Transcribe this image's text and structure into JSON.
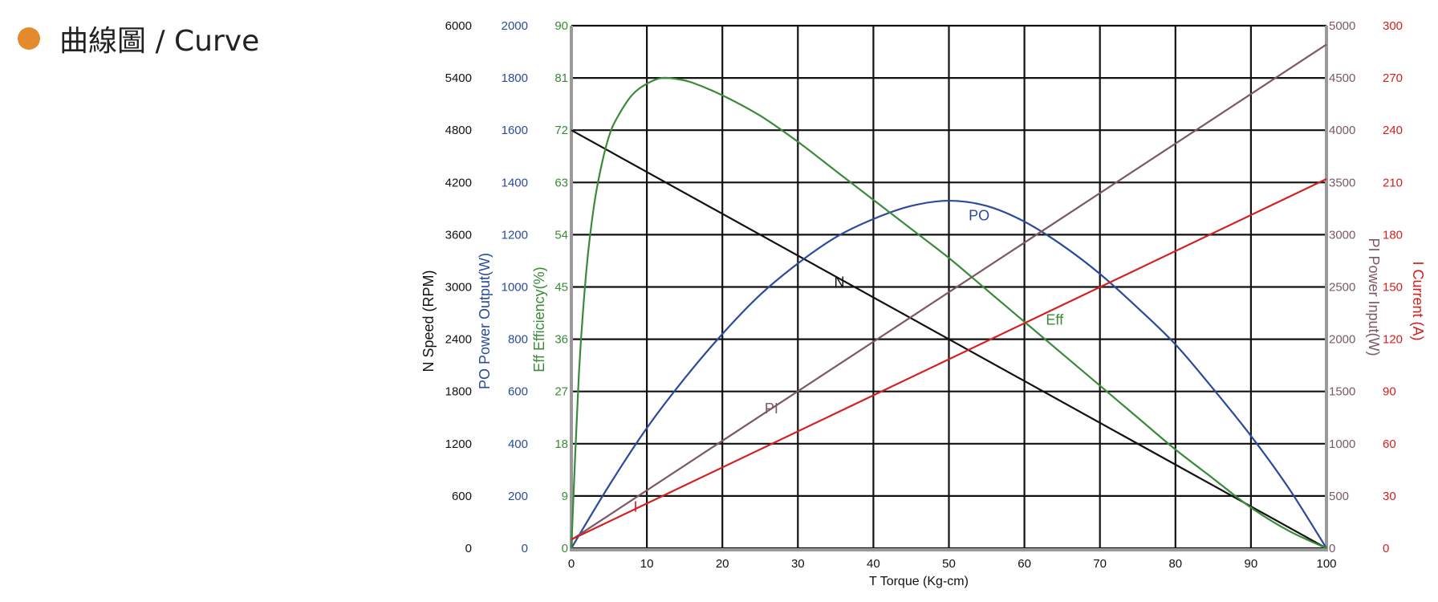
{
  "header": {
    "title": "曲線圖 / Curve"
  },
  "colors": {
    "bullet": "#e38a2d",
    "speed": "#111111",
    "power_output": "#2a4b9b",
    "efficiency": "#3a8a3a",
    "power_input": "#7a5866",
    "current": "#d22020",
    "grid": "#111111"
  },
  "chart_data": {
    "type": "line",
    "grid": true,
    "x_axis": {
      "label": "T    Torque (Kg-cm)",
      "range": [
        0,
        100
      ],
      "ticks": [
        "0",
        "10",
        "20",
        "30",
        "40",
        "50",
        "60",
        "70",
        "80",
        "90",
        "100"
      ]
    },
    "y_axes": [
      {
        "id": "speed",
        "label": "N Speed (RPM)",
        "color": "#111111",
        "side": "left",
        "range": [
          0,
          6000
        ],
        "ticks": [
          "0",
          "600",
          "1200",
          "1800",
          "2400",
          "3000",
          "3600",
          "4200",
          "4800",
          "5400",
          "6000"
        ]
      },
      {
        "id": "po",
        "label": "PO Power Output(W)",
        "color": "#2a4b9b",
        "side": "left",
        "range": [
          0,
          2000
        ],
        "ticks": [
          "0",
          "200",
          "400",
          "600",
          "800",
          "1000",
          "1200",
          "1400",
          "1600",
          "1800",
          "2000"
        ]
      },
      {
        "id": "eff",
        "label": "Eff Efficiency(%)",
        "color": "#3a8a3a",
        "side": "left",
        "range": [
          0,
          90
        ],
        "ticks": [
          "0",
          "9",
          "18",
          "27",
          "36",
          "45",
          "54",
          "63",
          "72",
          "81",
          "90"
        ]
      },
      {
        "id": "pi",
        "label": "PI   Power Input(W)",
        "color": "#7a5866",
        "side": "right",
        "range": [
          0,
          5000
        ],
        "ticks": [
          "0",
          "500",
          "1000",
          "1500",
          "2000",
          "2500",
          "3000",
          "3500",
          "4000",
          "4500",
          "5000"
        ]
      },
      {
        "id": "cur",
        "label": "I   Current (A)",
        "color": "#d22020",
        "side": "right",
        "range": [
          0,
          300
        ],
        "ticks": [
          "0",
          "30",
          "60",
          "90",
          "120",
          "150",
          "180",
          "210",
          "240",
          "270",
          "300"
        ]
      }
    ],
    "series": [
      {
        "name": "N",
        "axis": "speed",
        "x": [
          0,
          100
        ],
        "y": [
          4800,
          0
        ]
      },
      {
        "name": "PO",
        "axis": "po",
        "x": [
          0,
          5,
          10,
          15,
          20,
          25,
          30,
          35,
          40,
          45,
          50,
          55,
          60,
          65,
          70,
          75,
          80,
          85,
          90,
          95,
          100
        ],
        "y": [
          0,
          240,
          460,
          650,
          820,
          970,
          1090,
          1190,
          1260,
          1310,
          1330,
          1310,
          1250,
          1160,
          1050,
          920,
          780,
          610,
          430,
          230,
          0
        ]
      },
      {
        "name": "Eff",
        "axis": "eff",
        "x": [
          0,
          1,
          2,
          3,
          4,
          5,
          6,
          8,
          10,
          12,
          14,
          16,
          20,
          25,
          30,
          35,
          40,
          45,
          50,
          55,
          60,
          65,
          70,
          75,
          80,
          85,
          90,
          95,
          100
        ],
        "y": [
          0,
          30,
          48,
          59,
          66,
          71,
          74,
          78,
          80,
          81,
          80.8,
          80.2,
          78,
          74.5,
          70,
          65,
          60,
          55,
          50,
          44.5,
          39,
          33.5,
          28,
          22.5,
          17,
          12,
          7,
          3,
          0
        ]
      },
      {
        "name": "PI",
        "axis": "pi",
        "x": [
          0,
          100
        ],
        "y": [
          80,
          4820
        ]
      },
      {
        "name": "I",
        "axis": "cur",
        "x": [
          0,
          100
        ],
        "y": [
          5,
          212
        ]
      }
    ],
    "annotations": [
      {
        "text": "N",
        "series": "N",
        "x": 35.5,
        "y_axis": "speed",
        "y": 3000
      },
      {
        "text": "PO",
        "series": "PO",
        "x": 54,
        "y_axis": "po",
        "y": 1255
      },
      {
        "text": "Eff",
        "series": "Eff",
        "x": 64,
        "y_axis": "eff",
        "y": 38.5
      },
      {
        "text": "PI",
        "series": "PI",
        "x": 26.5,
        "y_axis": "pi",
        "y": 1290
      },
      {
        "text": "I",
        "series": "I",
        "x": 8.5,
        "y_axis": "cur",
        "y": 21
      }
    ]
  }
}
